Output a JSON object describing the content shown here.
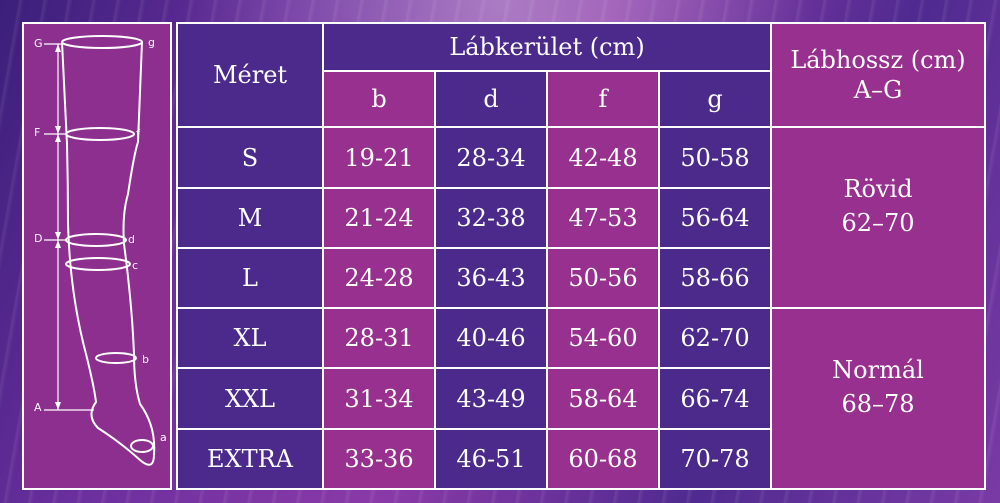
{
  "diagram": {
    "labels_left": [
      "G",
      "F",
      "D",
      "A"
    ],
    "labels_right": [
      "g",
      "f",
      "d",
      "c",
      "b",
      "a"
    ]
  },
  "table": {
    "size_header": "Méret",
    "circumference_header": "Lábkerület (cm)",
    "length_header_line1": "Lábhossz (cm)",
    "length_header_line2": "A–G",
    "columns": [
      "b",
      "d",
      "f",
      "g"
    ],
    "rows": [
      {
        "size": "S",
        "b": "19-21",
        "d": "28-34",
        "f": "42-48",
        "g": "50-58"
      },
      {
        "size": "M",
        "b": "21-24",
        "d": "32-38",
        "f": "47-53",
        "g": "56-64"
      },
      {
        "size": "L",
        "b": "24-28",
        "d": "36-43",
        "f": "50-56",
        "g": "58-66"
      },
      {
        "size": "XL",
        "b": "28-31",
        "d": "40-46",
        "f": "54-60",
        "g": "62-70"
      },
      {
        "size": "XXL",
        "b": "31-34",
        "d": "43-49",
        "f": "58-64",
        "g": "66-74"
      },
      {
        "size": "EXTRA",
        "b": "33-36",
        "d": "46-51",
        "f": "60-68",
        "g": "70-78"
      }
    ],
    "lengths": [
      {
        "name": "Rövid",
        "range": "62–70"
      },
      {
        "name": "Normál",
        "range": "68–78"
      }
    ]
  },
  "colors": {
    "purple": "#4b2a8c",
    "magenta": "#98308f",
    "border": "#ffffff"
  }
}
